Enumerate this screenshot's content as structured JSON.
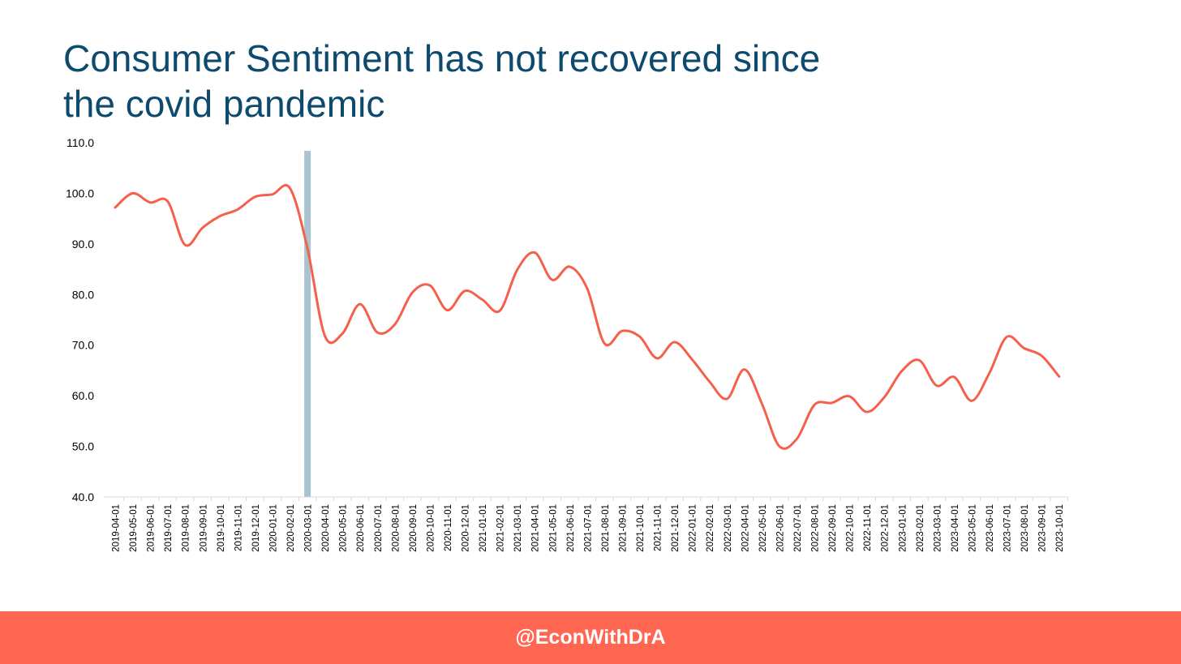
{
  "slide": {
    "title_line1": "Consumer Sentiment has not recovered since",
    "title_line2": "the covid pandemic",
    "footer_handle": "@EconWithDrA"
  },
  "colors": {
    "title": "#0d4a6e",
    "line": "#f4604c",
    "marker": "#a9c4d0",
    "footer_bg": "#ff6752"
  },
  "chart_data": {
    "type": "line",
    "title": "",
    "xlabel": "",
    "ylabel": "",
    "ylim": [
      40,
      110
    ],
    "yticks": [
      "110.0",
      "100.0",
      "90.0",
      "80.0",
      "70.0",
      "60.0",
      "50.0",
      "40.0"
    ],
    "grid": false,
    "legend": "none",
    "x": [
      "2019-04-01",
      "2019-05-01",
      "2019-06-01",
      "2019-07-01",
      "2019-08-01",
      "2019-09-01",
      "2019-10-01",
      "2019-11-01",
      "2019-12-01",
      "2020-01-01",
      "2020-02-01",
      "2020-03-01",
      "2020-04-01",
      "2020-05-01",
      "2020-06-01",
      "2020-07-01",
      "2020-08-01",
      "2020-09-01",
      "2020-10-01",
      "2020-11-01",
      "2020-12-01",
      "2021-01-01",
      "2021-02-01",
      "2021-03-01",
      "2021-04-01",
      "2021-05-01",
      "2021-06-01",
      "2021-07-01",
      "2021-08-01",
      "2021-09-01",
      "2021-10-01",
      "2021-11-01",
      "2021-12-01",
      "2022-01-01",
      "2022-02-01",
      "2022-03-01",
      "2022-04-01",
      "2022-05-01",
      "2022-06-01",
      "2022-07-01",
      "2022-08-01",
      "2022-09-01",
      "2022-10-01",
      "2022-11-01",
      "2022-12-01",
      "2023-01-01",
      "2023-02-01",
      "2023-03-01",
      "2023-04-01",
      "2023-05-01",
      "2023-06-01",
      "2023-07-01",
      "2023-08-01",
      "2023-09-01",
      "2023-10-01"
    ],
    "series": [
      {
        "values": [
          97.2,
          100.0,
          98.2,
          98.4,
          89.8,
          93.2,
          95.5,
          96.8,
          99.3,
          99.8,
          101.0,
          89.1,
          71.8,
          72.3,
          78.1,
          72.5,
          74.1,
          80.4,
          81.8,
          76.9,
          80.7,
          79.0,
          76.8,
          84.9,
          88.3,
          82.9,
          85.5,
          81.2,
          70.3,
          72.8,
          71.7,
          67.4,
          70.6,
          67.2,
          62.8,
          59.4,
          65.2,
          58.4,
          50.0,
          51.5,
          58.2,
          58.6,
          59.9,
          56.8,
          59.7,
          64.9,
          67.0,
          62.0,
          63.7,
          59.0,
          64.4,
          71.6,
          69.4,
          67.9,
          63.8
        ]
      }
    ],
    "annotations": [
      {
        "type": "vertical_band",
        "x": "2020-03-01"
      }
    ]
  }
}
